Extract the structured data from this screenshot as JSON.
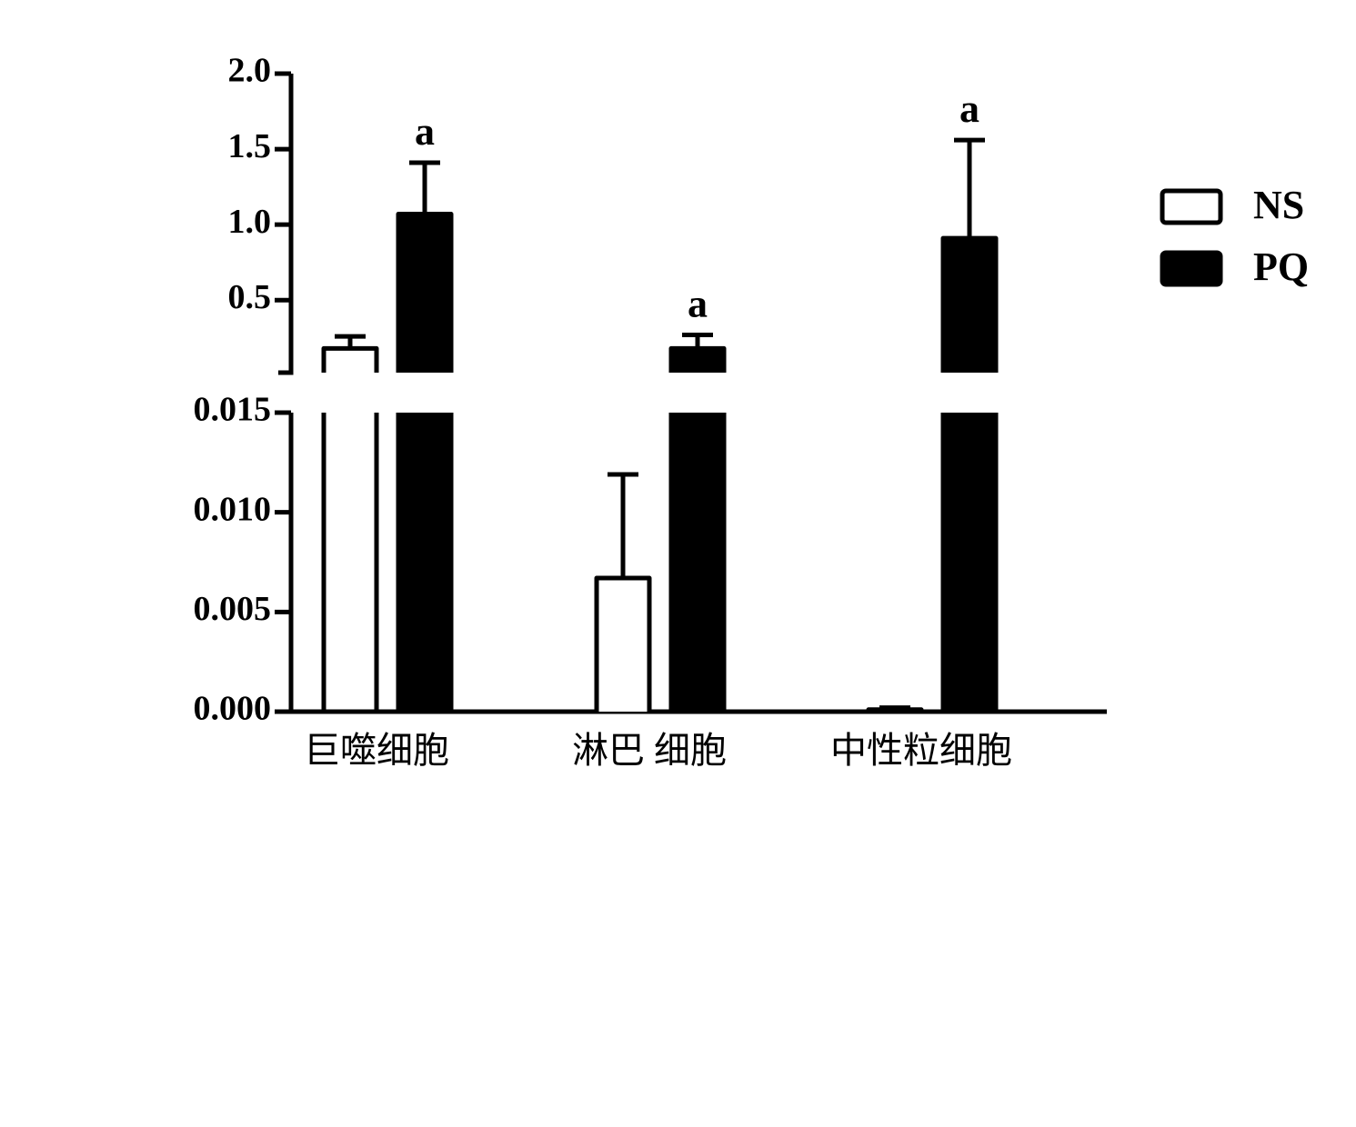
{
  "chart_data": {
    "type": "broken_bar",
    "categories": [
      "巨噬细胞",
      "淋巴 细胞",
      "中性粒细胞"
    ],
    "series": [
      {
        "name": "NS",
        "color": "#ffffff",
        "values": [
          0.18,
          0.0067,
          0.0001
        ],
        "errors": [
          0.08,
          0.0052,
          0.0001
        ]
      },
      {
        "name": "PQ",
        "color": "#000000",
        "values": [
          1.07,
          0.18,
          0.91
        ],
        "errors": [
          0.34,
          0.09,
          0.65
        ],
        "annotations": [
          "a",
          "a",
          "a"
        ]
      }
    ],
    "ylim_lower": [
      0,
      0.015
    ],
    "yticks_lower": [
      {
        "value": 0,
        "label": "0.000"
      },
      {
        "value": 0.005,
        "label": "0.005"
      },
      {
        "value": 0.01,
        "label": "0.010"
      },
      {
        "value": 0.015,
        "label": "0.015"
      }
    ],
    "ylim_upper": [
      0.02,
      2.0
    ],
    "yticks_upper": [
      {
        "value": 0.5,
        "label": "0.5"
      },
      {
        "value": 1,
        "label": "1.0"
      },
      {
        "value": 1.5,
        "label": "1.5"
      },
      {
        "value": 2,
        "label": "2.0"
      }
    ],
    "legend": "right"
  }
}
